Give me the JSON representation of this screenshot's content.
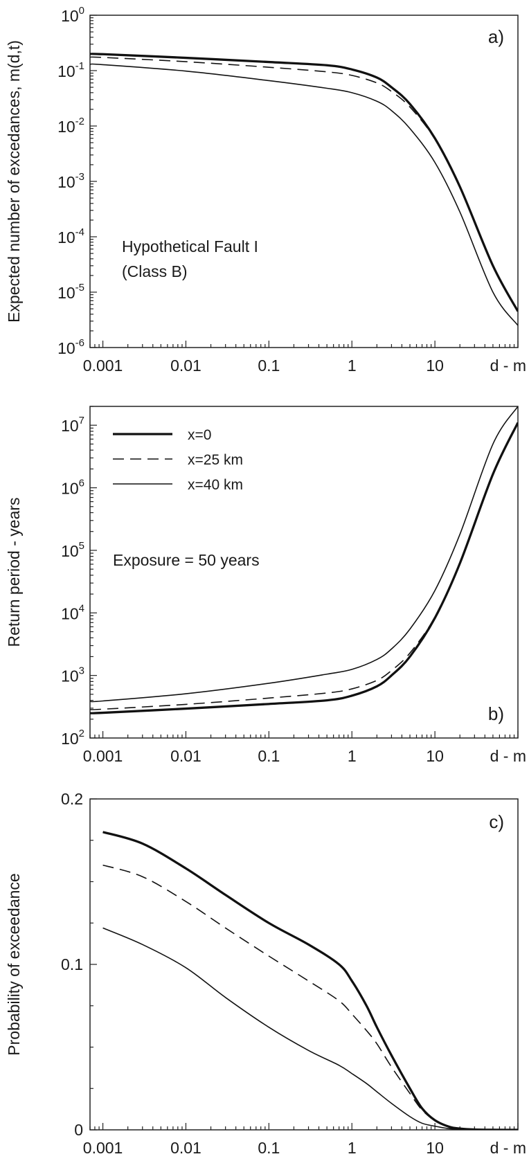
{
  "figure": {
    "x_unit_label": "d - m",
    "x_tick_labels": [
      "0.001",
      "0.01",
      "0.1",
      "1",
      "10"
    ]
  },
  "chart_data": [
    {
      "panel": "a",
      "type": "line",
      "tag": "a)",
      "xscale": "log",
      "yscale": "log",
      "xlim": [
        0.0007,
        100
      ],
      "ylim": [
        1e-06,
        1
      ],
      "xlabel": "d - m",
      "ylabel": "Expected number of excedances, m(d,t)",
      "y_ticks": [
        {
          "value": 1,
          "base": "10",
          "exp": "0"
        },
        {
          "value": 0.1,
          "base": "10",
          "exp": "-1"
        },
        {
          "value": 0.01,
          "base": "10",
          "exp": "-2"
        },
        {
          "value": 0.001,
          "base": "10",
          "exp": "-3"
        },
        {
          "value": 0.0001,
          "base": "10",
          "exp": "-4"
        },
        {
          "value": 1e-05,
          "base": "10",
          "exp": "-5"
        },
        {
          "value": 1e-06,
          "base": "10",
          "exp": "-6"
        }
      ],
      "annotation_lines": [
        "Hypothetical Fault I",
        "(Class B)"
      ],
      "series": [
        {
          "style": "thick",
          "x": [
            0.0007,
            0.001,
            0.01,
            0.1,
            0.5,
            1,
            2,
            3,
            5,
            10,
            20,
            50,
            100
          ],
          "y": [
            0.2,
            0.198,
            0.17,
            0.143,
            0.125,
            0.105,
            0.075,
            0.05,
            0.025,
            0.006,
            0.0008,
            3e-05,
            4.5e-06
          ]
        },
        {
          "style": "dashed",
          "x": [
            0.0007,
            0.001,
            0.01,
            0.1,
            0.5,
            1,
            2,
            3,
            5,
            10,
            20,
            50,
            100
          ],
          "y": [
            0.175,
            0.173,
            0.145,
            0.115,
            0.095,
            0.082,
            0.06,
            0.042,
            0.022,
            0.0058,
            0.00078,
            3e-05,
            4.5e-06
          ]
        },
        {
          "style": "thin",
          "x": [
            0.0007,
            0.001,
            0.01,
            0.1,
            0.5,
            1,
            2,
            3,
            5,
            10,
            20,
            50,
            100
          ],
          "y": [
            0.13,
            0.128,
            0.098,
            0.066,
            0.048,
            0.04,
            0.028,
            0.019,
            0.009,
            0.0022,
            0.00028,
            1e-05,
            2.5e-06
          ]
        }
      ]
    },
    {
      "panel": "b",
      "type": "line",
      "tag": "b)",
      "xscale": "log",
      "yscale": "log",
      "xlim": [
        0.0007,
        100
      ],
      "ylim": [
        100,
        20000000
      ],
      "xlabel": "d - m",
      "ylabel": "Return period - years",
      "y_ticks": [
        {
          "value": 10000000,
          "base": "10",
          "exp": "7"
        },
        {
          "value": 1000000,
          "base": "10",
          "exp": "6"
        },
        {
          "value": 100000,
          "base": "10",
          "exp": "5"
        },
        {
          "value": 10000,
          "base": "10",
          "exp": "4"
        },
        {
          "value": 1000,
          "base": "10",
          "exp": "3"
        },
        {
          "value": 100,
          "base": "10",
          "exp": "2"
        }
      ],
      "annotation_lines": [
        "Exposure = 50 years"
      ],
      "legend": {
        "placement": "top-left",
        "entries": [
          {
            "style": "thick",
            "label": "x=0"
          },
          {
            "style": "dashed",
            "label": "x=25 km"
          },
          {
            "style": "thin",
            "label": "x=40 km"
          }
        ]
      },
      "series": [
        {
          "style": "thick",
          "x": [
            0.0007,
            0.001,
            0.01,
            0.1,
            0.5,
            1,
            2,
            3,
            5,
            10,
            20,
            50,
            100
          ],
          "y": [
            250,
            253,
            295,
            350,
            400,
            475,
            670,
            1000,
            2000,
            8300,
            62000,
            1650000,
            11000000
          ]
        },
        {
          "style": "dashed",
          "x": [
            0.0007,
            0.001,
            0.01,
            0.1,
            0.5,
            1,
            2,
            3,
            5,
            10,
            20,
            50,
            100
          ],
          "y": [
            285,
            289,
            345,
            435,
            525,
            610,
            835,
            1200,
            2280,
            8600,
            64000,
            1650000,
            11000000
          ]
        },
        {
          "style": "thin",
          "x": [
            0.0007,
            0.001,
            0.01,
            0.1,
            0.5,
            1,
            2,
            3,
            5,
            10,
            20,
            50,
            100
          ],
          "y": [
            385,
            391,
            510,
            750,
            1050,
            1250,
            1800,
            2650,
            5500,
            22800,
            180000,
            5000000,
            20000000
          ]
        }
      ]
    },
    {
      "panel": "c",
      "type": "line",
      "tag": "c)",
      "xscale": "log",
      "yscale": "linear",
      "xlim": [
        0.0007,
        100
      ],
      "ylim": [
        0,
        0.2
      ],
      "xlabel": "d - m",
      "ylabel": "Probability of exceedance",
      "y_ticks": [
        {
          "value": 0.2,
          "label": "0.2"
        },
        {
          "value": 0.1,
          "label": "0.1"
        },
        {
          "value": 0,
          "label": "0"
        }
      ],
      "series": [
        {
          "style": "thick",
          "x": [
            0.001,
            0.003,
            0.01,
            0.03,
            0.1,
            0.3,
            0.7,
            1,
            1.5,
            2,
            3,
            5,
            7,
            10,
            15,
            20,
            30,
            50,
            100
          ],
          "y": [
            0.18,
            0.173,
            0.158,
            0.142,
            0.125,
            0.112,
            0.1,
            0.09,
            0.075,
            0.062,
            0.045,
            0.025,
            0.013,
            0.0058,
            0.0018,
            0.0008,
            0.0002,
            3e-05,
            4.5e-06
          ]
        },
        {
          "style": "dashed",
          "x": [
            0.001,
            0.003,
            0.01,
            0.03,
            0.1,
            0.3,
            0.7,
            1,
            1.5,
            2,
            3,
            5,
            7,
            10,
            15,
            20,
            30,
            50,
            100
          ],
          "y": [
            0.16,
            0.153,
            0.138,
            0.122,
            0.105,
            0.09,
            0.078,
            0.07,
            0.06,
            0.052,
            0.038,
            0.022,
            0.012,
            0.0058,
            0.0018,
            0.0008,
            0.0002,
            3e-05,
            4.5e-06
          ]
        },
        {
          "style": "thin",
          "x": [
            0.001,
            0.003,
            0.01,
            0.03,
            0.1,
            0.3,
            0.7,
            1,
            1.5,
            2,
            3,
            5,
            7,
            10,
            15,
            20,
            30,
            50,
            100
          ],
          "y": [
            0.122,
            0.112,
            0.098,
            0.08,
            0.062,
            0.048,
            0.039,
            0.034,
            0.028,
            0.023,
            0.016,
            0.008,
            0.004,
            0.0022,
            0.0007,
            0.0003,
            8e-05,
            1e-05,
            2.5e-06
          ]
        }
      ]
    }
  ]
}
